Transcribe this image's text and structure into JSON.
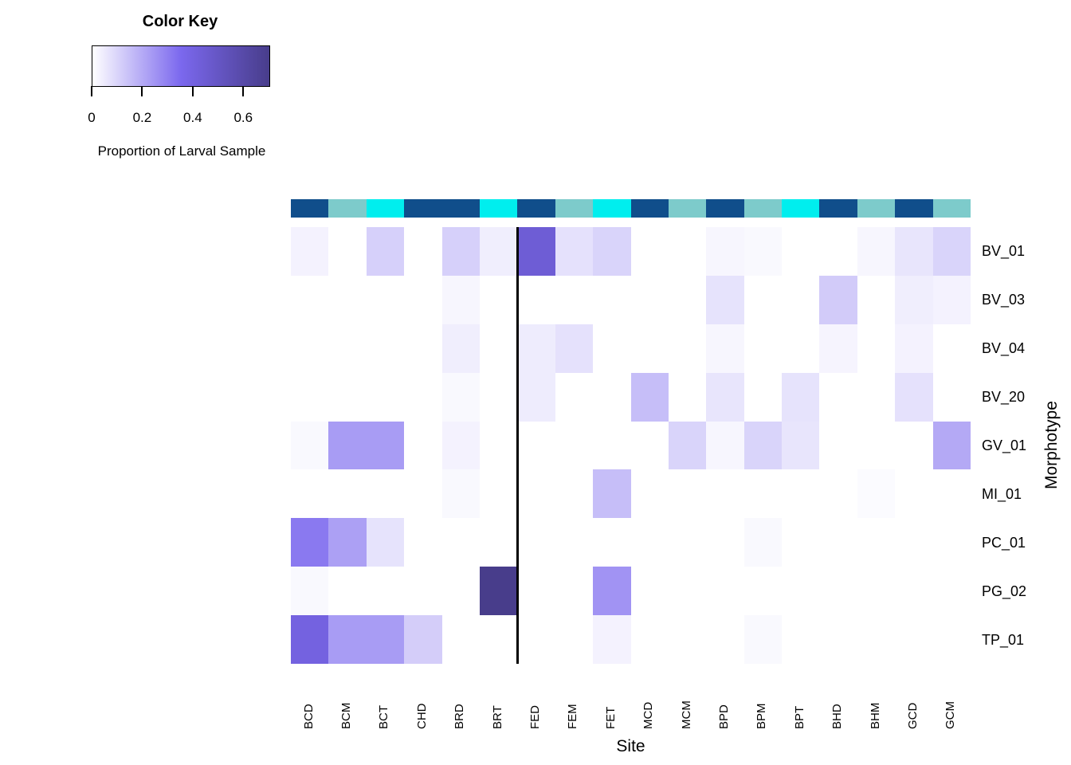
{
  "color_key": {
    "title": "Color Key",
    "axis_label": "Proportion of Larval Sample",
    "ticks": [
      "0",
      "0.2",
      "0.4",
      "0.6"
    ],
    "tick_values": [
      0,
      0.2,
      0.4,
      0.6
    ],
    "range": [
      0,
      0.7
    ],
    "gradient_stops": [
      "#FFFFFF",
      "#7B68EE",
      "#483D8B"
    ]
  },
  "side_colors": {
    "palette": {
      "dark_blue": "#104E8B",
      "teal": "#7DCBCB",
      "cyan": "#00EEEE"
    },
    "per_column": [
      "dark_blue",
      "teal",
      "cyan",
      "dark_blue",
      "dark_blue",
      "cyan",
      "dark_blue",
      "teal",
      "cyan",
      "dark_blue",
      "teal",
      "dark_blue",
      "teal",
      "cyan",
      "dark_blue",
      "teal",
      "dark_blue",
      "teal"
    ]
  },
  "chart_data": {
    "type": "heatmap",
    "title": "",
    "xlabel": "Site",
    "ylabel": "Morphotype",
    "value_label": "Proportion of Larval Sample",
    "value_range": [
      0,
      0.7
    ],
    "separator_after_column_index": 5,
    "columns": [
      "BCD",
      "BCM",
      "BCT",
      "CHD",
      "BRD",
      "BRT",
      "FED",
      "FEM",
      "FET",
      "MCD",
      "MCM",
      "BPD",
      "BPM",
      "BPT",
      "BHD",
      "BHM",
      "GCD",
      "GCM"
    ],
    "rows": [
      "BV_01",
      "BV_03",
      "BV_04",
      "BV_20",
      "GV_01",
      "MI_01",
      "PC_01",
      "PG_02",
      "TP_01"
    ],
    "values": [
      [
        0.03,
        0,
        0.11,
        0,
        0.11,
        0.04,
        0.44,
        0.07,
        0.1,
        0,
        0,
        0.02,
        0.015,
        0,
        0,
        0.02,
        0.06,
        0.1
      ],
      [
        0,
        0,
        0,
        0,
        0.02,
        0,
        0,
        0,
        0,
        0,
        0,
        0.065,
        0,
        0,
        0.12,
        0,
        0.04,
        0.03
      ],
      [
        0,
        0,
        0,
        0,
        0.04,
        0,
        0.045,
        0.07,
        0,
        0,
        0,
        0.02,
        0,
        0,
        0.025,
        0,
        0.03,
        0
      ],
      [
        0,
        0,
        0,
        0,
        0.015,
        0,
        0.045,
        0,
        0,
        0.15,
        0,
        0.06,
        0,
        0.065,
        0,
        0,
        0.07,
        0
      ],
      [
        0.015,
        0.23,
        0.23,
        0,
        0.03,
        0,
        0,
        0,
        0,
        0,
        0.1,
        0.02,
        0.1,
        0.06,
        0,
        0,
        0,
        0.2
      ],
      [
        0,
        0,
        0,
        0,
        0.015,
        0,
        0,
        0,
        0.15,
        0,
        0,
        0,
        0,
        0,
        0,
        0.01,
        0,
        0
      ],
      [
        0.31,
        0.22,
        0.065,
        0,
        0,
        0,
        0,
        0,
        0,
        0,
        0,
        0,
        0.015,
        0,
        0,
        0,
        0,
        0
      ],
      [
        0.015,
        0,
        0,
        0,
        0,
        0.7,
        0,
        0,
        0.25,
        0,
        0,
        0,
        0,
        0,
        0,
        0,
        0,
        0
      ],
      [
        0.4,
        0.23,
        0.23,
        0.115,
        0,
        0,
        0,
        0,
        0.03,
        0,
        0,
        0,
        0.015,
        0,
        0,
        0,
        0,
        0
      ]
    ]
  }
}
